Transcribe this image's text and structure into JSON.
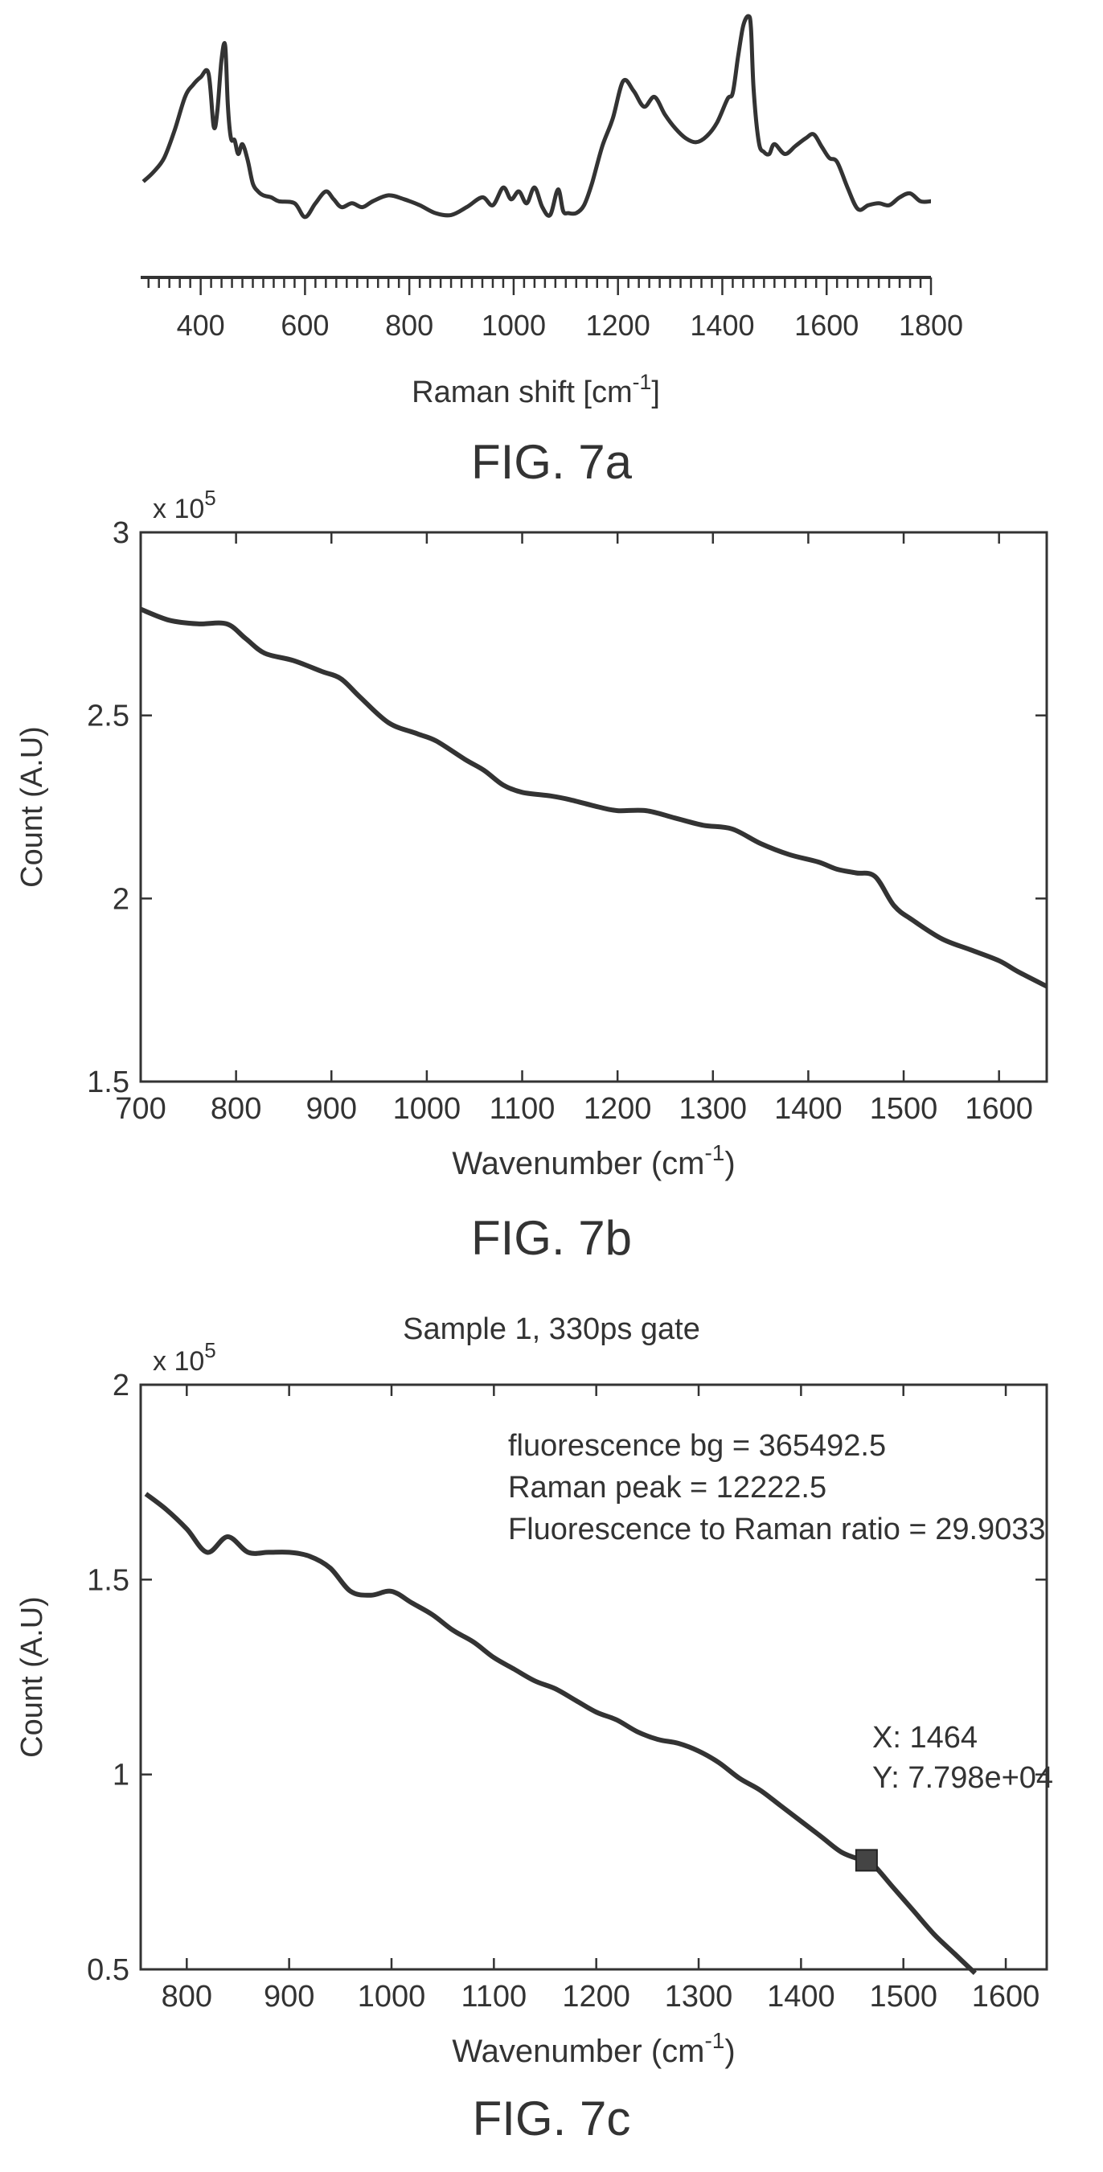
{
  "figures": [
    {
      "id": "a",
      "caption": "FIG. 7a"
    },
    {
      "id": "b",
      "caption": "FIG. 7b"
    },
    {
      "id": "c",
      "caption": "FIG. 7c"
    }
  ],
  "chart_data": [
    {
      "type": "line",
      "figure": "FIG. 7a",
      "title": "",
      "xlabel": "Raman shift [cm-1]",
      "xlabel_parts": {
        "base": "Raman shift [cm",
        "sup": "-1",
        "tail": "]"
      },
      "ylabel": "",
      "xlim": [
        285,
        1800
      ],
      "xticks": [
        400,
        600,
        800,
        1000,
        1200,
        1400,
        1600,
        1800
      ],
      "y_axis_shown": false,
      "grid": false,
      "series": [
        {
          "x": [
            290,
            310,
            330,
            350,
            370,
            385,
            400,
            415,
            425,
            432,
            440,
            447,
            452,
            458,
            465,
            472,
            480,
            490,
            500,
            510,
            520,
            535,
            550,
            580,
            600,
            620,
            640,
            655,
            670,
            690,
            710,
            730,
            760,
            790,
            820,
            850,
            880,
            910,
            940,
            960,
            980,
            995,
            1010,
            1025,
            1040,
            1055,
            1070,
            1085,
            1095,
            1105,
            1120,
            1135,
            1150,
            1170,
            1190,
            1210,
            1230,
            1250,
            1270,
            1290,
            1310,
            1330,
            1350,
            1370,
            1390,
            1410,
            1420,
            1430,
            1440,
            1450,
            1455,
            1460,
            1470,
            1480,
            1490,
            1500,
            1520,
            1540,
            1560,
            1575,
            1590,
            1605,
            1620,
            1640,
            1660,
            1680,
            1700,
            1720,
            1740,
            1760,
            1780,
            1800
          ],
          "y": [
            0.16,
            0.21,
            0.28,
            0.42,
            0.59,
            0.65,
            0.69,
            0.71,
            0.44,
            0.52,
            0.78,
            0.85,
            0.55,
            0.38,
            0.37,
            0.3,
            0.35,
            0.27,
            0.15,
            0.11,
            0.09,
            0.08,
            0.06,
            0.05,
            -0.02,
            0.05,
            0.11,
            0.07,
            0.03,
            0.05,
            0.03,
            0.06,
            0.09,
            0.07,
            0.04,
            0.0,
            -0.01,
            0.03,
            0.08,
            0.04,
            0.13,
            0.07,
            0.11,
            0.05,
            0.13,
            0.03,
            -0.01,
            0.12,
            0.01,
            0.0,
            0.0,
            0.04,
            0.15,
            0.34,
            0.48,
            0.67,
            0.62,
            0.54,
            0.59,
            0.5,
            0.43,
            0.38,
            0.36,
            0.39,
            0.46,
            0.58,
            0.61,
            0.79,
            0.95,
            1.0,
            0.94,
            0.63,
            0.36,
            0.31,
            0.3,
            0.35,
            0.3,
            0.34,
            0.38,
            0.4,
            0.34,
            0.28,
            0.26,
            0.13,
            0.02,
            0.04,
            0.05,
            0.04,
            0.08,
            0.1,
            0.06,
            0.06
          ]
        }
      ]
    },
    {
      "type": "line",
      "figure": "FIG. 7b",
      "title": "",
      "xlabel": "Wavenumber (cm-1)",
      "xlabel_parts": {
        "base": "Wavenumber (cm",
        "sup": "-1",
        "tail": ")"
      },
      "ylabel": "Count (A.U)",
      "y_multiplier": "x 10^5",
      "xlim": [
        700,
        1650
      ],
      "ylim": [
        1.5,
        3
      ],
      "xticks": [
        700,
        800,
        900,
        1000,
        1100,
        1200,
        1300,
        1400,
        1500,
        1600
      ],
      "yticks": [
        1.5,
        2,
        2.5,
        3
      ],
      "ytick_labels": [
        "1.5",
        "2",
        "2.5",
        "3"
      ],
      "grid": false,
      "series": [
        {
          "x": [
            700,
            730,
            760,
            790,
            810,
            830,
            860,
            890,
            910,
            930,
            960,
            990,
            1010,
            1040,
            1060,
            1080,
            1100,
            1130,
            1150,
            1180,
            1200,
            1230,
            1260,
            1290,
            1320,
            1350,
            1380,
            1410,
            1430,
            1450,
            1470,
            1490,
            1510,
            1540,
            1570,
            1600,
            1620,
            1650
          ],
          "y": [
            2.79,
            2.76,
            2.75,
            2.75,
            2.71,
            2.67,
            2.65,
            2.62,
            2.6,
            2.55,
            2.48,
            2.45,
            2.43,
            2.38,
            2.35,
            2.31,
            2.29,
            2.28,
            2.27,
            2.25,
            2.24,
            2.24,
            2.22,
            2.2,
            2.19,
            2.15,
            2.12,
            2.1,
            2.08,
            2.07,
            2.06,
            1.98,
            1.94,
            1.89,
            1.86,
            1.83,
            1.8,
            1.76
          ]
        }
      ]
    },
    {
      "type": "line",
      "figure": "FIG. 7c",
      "title": "Sample 1, 330ps gate",
      "xlabel": "Wavenumber (cm-1)",
      "xlabel_parts": {
        "base": "Wavenumber (cm",
        "sup": "-1",
        "tail": ")"
      },
      "ylabel": "Count (A.U)",
      "y_multiplier": "x 10^5",
      "xlim": [
        755,
        1640
      ],
      "ylim": [
        0.5,
        2
      ],
      "xticks": [
        800,
        900,
        1000,
        1100,
        1200,
        1300,
        1400,
        1500,
        1600
      ],
      "yticks": [
        0.5,
        1,
        1.5,
        2
      ],
      "ytick_labels": [
        "0.5",
        "1",
        "1.5",
        "2"
      ],
      "grid": false,
      "annotation_lines": [
        "fluorescence bg = 365492.5",
        "Raman peak = 12222.5",
        "Fluorescence to Raman ratio = 29.9033"
      ],
      "datatip": {
        "x": 1464,
        "y": 77980,
        "lines": [
          "X: 1464",
          "Y: 7.798e+04"
        ]
      },
      "series": [
        {
          "x": [
            760,
            780,
            800,
            820,
            840,
            860,
            880,
            900,
            920,
            940,
            960,
            980,
            1000,
            1020,
            1040,
            1060,
            1080,
            1100,
            1120,
            1140,
            1160,
            1180,
            1200,
            1220,
            1240,
            1260,
            1280,
            1300,
            1320,
            1340,
            1360,
            1380,
            1400,
            1420,
            1440,
            1460,
            1470,
            1490,
            1510,
            1530,
            1550,
            1570
          ],
          "y": [
            1.72,
            1.68,
            1.63,
            1.57,
            1.61,
            1.57,
            1.57,
            1.57,
            1.56,
            1.53,
            1.47,
            1.46,
            1.47,
            1.44,
            1.41,
            1.37,
            1.34,
            1.3,
            1.27,
            1.24,
            1.22,
            1.19,
            1.16,
            1.14,
            1.11,
            1.09,
            1.08,
            1.06,
            1.03,
            0.99,
            0.96,
            0.92,
            0.88,
            0.84,
            0.8,
            0.78,
            0.77,
            0.71,
            0.65,
            0.59,
            0.54,
            0.49
          ]
        }
      ]
    }
  ]
}
